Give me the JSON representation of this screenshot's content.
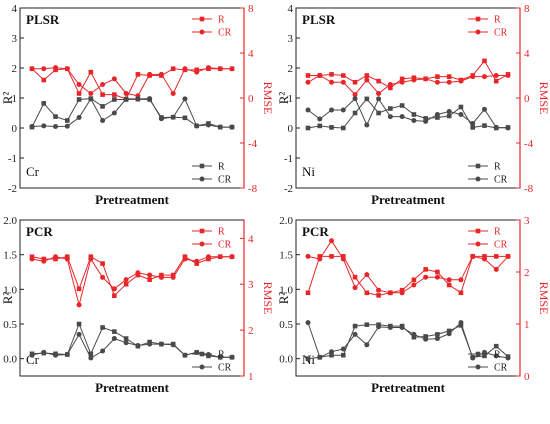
{
  "figure": {
    "colors": {
      "rmse": "#e8262a",
      "r2": "#4a4a4a"
    }
  },
  "chart_data": [
    {
      "type": "line",
      "title": "PLSR",
      "metal": "Cr",
      "xlabel": "Pretreatment",
      "ylabel_left": "R²",
      "ylabel_right": "RMSE",
      "left_ylim": [
        -2,
        4
      ],
      "left_ticks": [
        "-2",
        "-1",
        "0",
        "1",
        "2",
        "3",
        "4"
      ],
      "right_ylim": [
        -8,
        8
      ],
      "right_ticks": [
        "-8",
        "-4",
        "0",
        "4",
        "8"
      ],
      "x": [
        1,
        2,
        3,
        4,
        5,
        6,
        7,
        8,
        9,
        10,
        11,
        12,
        13,
        14,
        15,
        16,
        17,
        18
      ],
      "series": [
        {
          "name": "R",
          "axis": "right",
          "color": "#e8262a",
          "marker": "square",
          "values": [
            2.6,
            1.6,
            2.5,
            2.6,
            0.4,
            2.3,
            0.3,
            0.3,
            -0.1,
            2.1,
            2.0,
            2.0,
            2.6,
            2.5,
            2.5,
            2.6,
            2.6,
            2.6
          ]
        },
        {
          "name": "CR",
          "axis": "right",
          "color": "#e8262a",
          "marker": "circle",
          "values": [
            2.6,
            2.6,
            2.7,
            2.6,
            1.2,
            0.4,
            1.2,
            1.7,
            0.4,
            0.2,
            2.1,
            2.1,
            0.4,
            2.6,
            2.3,
            2.7,
            2.6,
            2.6
          ]
        },
        {
          "name": "R",
          "axis": "left",
          "color": "#4a4a4a",
          "marker": "square",
          "values": [
            0.03,
            0.82,
            0.38,
            0.25,
            0.95,
            0.98,
            0.72,
            0.95,
            0.95,
            0.96,
            0.95,
            0.35,
            0.36,
            0.34,
            0.07,
            0.15,
            0.03,
            0.03
          ]
        },
        {
          "name": "CR",
          "axis": "left",
          "color": "#4a4a4a",
          "marker": "circle",
          "values": [
            0.05,
            0.07,
            0.05,
            0.06,
            0.35,
            0.97,
            0.25,
            0.5,
            0.97,
            0.97,
            0.98,
            0.31,
            0.36,
            0.97,
            0.07,
            0.1,
            0.03,
            0.03
          ]
        }
      ],
      "legend": [
        {
          "label": "R",
          "color": "#e8262a",
          "marker": "square"
        },
        {
          "label": "CR",
          "color": "#e8262a",
          "marker": "circle"
        },
        {
          "label": "R",
          "color": "#4a4a4a",
          "marker": "square"
        },
        {
          "label": "CR",
          "color": "#4a4a4a",
          "marker": "circle"
        }
      ]
    },
    {
      "type": "line",
      "title": "PLSR",
      "metal": "Ni",
      "xlabel": "Pretreatment",
      "ylabel_left": "R²",
      "ylabel_right": "RMSE",
      "left_ylim": [
        -2,
        4
      ],
      "left_ticks": [
        "-2",
        "-1",
        "0",
        "1",
        "2",
        "3",
        "4"
      ],
      "right_ylim": [
        -8,
        8
      ],
      "right_ticks": [
        "-8",
        "-4",
        "0",
        "4",
        "8"
      ],
      "x": [
        1,
        2,
        3,
        4,
        5,
        6,
        7,
        8,
        9,
        10,
        11,
        12,
        13,
        14,
        15,
        16,
        17,
        18
      ],
      "series": [
        {
          "name": "R",
          "axis": "right",
          "color": "#e8262a",
          "marker": "square",
          "values": [
            2.0,
            2.0,
            2.1,
            2.0,
            1.4,
            2.0,
            1.5,
            0.9,
            1.7,
            1.8,
            1.7,
            1.9,
            1.9,
            1.6,
            2.0,
            3.3,
            1.5,
            2.1
          ]
        },
        {
          "name": "CR",
          "axis": "right",
          "color": "#e8262a",
          "marker": "circle",
          "values": [
            1.4,
            2.0,
            1.4,
            1.4,
            0.3,
            1.6,
            0.4,
            1.2,
            1.4,
            1.6,
            1.7,
            1.4,
            1.4,
            1.5,
            1.9,
            1.9,
            2.0,
            2.0
          ]
        },
        {
          "name": "R",
          "axis": "left",
          "color": "#4a4a4a",
          "marker": "square",
          "values": [
            0.0,
            0.07,
            0.02,
            0.0,
            0.5,
            0.97,
            0.5,
            0.65,
            0.75,
            0.45,
            0.32,
            0.35,
            0.4,
            0.7,
            0.02,
            0.08,
            0.0,
            0.02
          ]
        },
        {
          "name": "CR",
          "axis": "left",
          "color": "#4a4a4a",
          "marker": "circle",
          "values": [
            0.6,
            0.3,
            0.6,
            0.6,
            0.98,
            0.1,
            0.97,
            0.38,
            0.38,
            0.25,
            0.22,
            0.45,
            0.55,
            0.45,
            0.15,
            0.62,
            0.02,
            0.0
          ]
        }
      ],
      "legend": [
        {
          "label": "R",
          "color": "#e8262a",
          "marker": "square"
        },
        {
          "label": "CR",
          "color": "#e8262a",
          "marker": "circle"
        },
        {
          "label": "R",
          "color": "#4a4a4a",
          "marker": "square"
        },
        {
          "label": "CR",
          "color": "#4a4a4a",
          "marker": "circle"
        }
      ]
    },
    {
      "type": "line",
      "title": "PCR",
      "metal": "Cr",
      "xlabel": "Pretreatment",
      "ylabel_left": "R²",
      "ylabel_right": "RMSE",
      "left_ylim": [
        -0.25,
        2
      ],
      "left_ticks": [
        "0.0",
        "0.5",
        "1.0",
        "1.5",
        "2.0"
      ],
      "right_ylim": [
        1,
        4.4
      ],
      "right_ticks": [
        "1",
        "2",
        "3",
        "4"
      ],
      "x": [
        1,
        2,
        3,
        4,
        5,
        6,
        7,
        8,
        9,
        10,
        11,
        12,
        13,
        14,
        15,
        16,
        17,
        18
      ],
      "series": [
        {
          "name": "R",
          "axis": "right",
          "color": "#e8262a",
          "marker": "square",
          "values": [
            3.6,
            3.55,
            3.55,
            3.6,
            2.9,
            3.6,
            3.45,
            2.75,
            3.0,
            3.2,
            3.1,
            3.2,
            3.2,
            3.6,
            3.45,
            3.55,
            3.6,
            3.6
          ]
        },
        {
          "name": "CR",
          "axis": "right",
          "color": "#e8262a",
          "marker": "circle",
          "values": [
            3.55,
            3.5,
            3.6,
            3.55,
            2.55,
            3.55,
            3.15,
            2.9,
            3.1,
            3.25,
            3.2,
            3.15,
            3.15,
            3.55,
            3.5,
            3.6,
            3.6,
            3.6
          ]
        },
        {
          "name": "R",
          "axis": "left",
          "color": "#4a4a4a",
          "marker": "square",
          "values": [
            0.07,
            0.08,
            0.07,
            0.06,
            0.5,
            0.07,
            0.45,
            0.39,
            0.29,
            0.18,
            0.24,
            0.21,
            0.21,
            0.05,
            0.09,
            0.04,
            0.02,
            0.02
          ]
        },
        {
          "name": "CR",
          "axis": "left",
          "color": "#4a4a4a",
          "marker": "circle",
          "values": [
            0.05,
            0.09,
            0.05,
            0.06,
            0.35,
            0.01,
            0.11,
            0.29,
            0.23,
            0.19,
            0.21,
            0.21,
            0.2,
            0.05,
            0.09,
            0.06,
            0.02,
            0.02
          ]
        }
      ],
      "legend": [
        {
          "label": "R",
          "color": "#e8262a",
          "marker": "square"
        },
        {
          "label": "CR",
          "color": "#e8262a",
          "marker": "circle"
        },
        {
          "label": "R",
          "color": "#4a4a4a",
          "marker": "square"
        },
        {
          "label": "CR",
          "color": "#4a4a4a",
          "marker": "circle"
        }
      ]
    },
    {
      "type": "line",
      "title": "PCR",
      "metal": "Ni",
      "xlabel": "Pretreatment",
      "ylabel_left": "R²",
      "ylabel_right": "RMSE",
      "left_ylim": [
        -0.25,
        2
      ],
      "left_ticks": [
        "0.0",
        "0.5",
        "1.0",
        "1.5",
        "2.0"
      ],
      "right_ylim": [
        0,
        3
      ],
      "right_ticks": [
        "0",
        "1",
        "2",
        "3"
      ],
      "x": [
        1,
        2,
        3,
        4,
        5,
        6,
        7,
        8,
        9,
        10,
        11,
        12,
        13,
        14,
        15,
        16,
        17,
        18
      ],
      "series": [
        {
          "name": "R",
          "axis": "right",
          "color": "#e8262a",
          "marker": "square",
          "values": [
            1.6,
            2.3,
            2.3,
            2.3,
            1.9,
            1.6,
            1.55,
            1.6,
            1.65,
            1.85,
            2.05,
            2.0,
            1.75,
            1.6,
            2.3,
            2.3,
            2.3,
            2.3
          ]
        },
        {
          "name": "CR",
          "axis": "right",
          "color": "#e8262a",
          "marker": "circle",
          "values": [
            2.3,
            2.25,
            2.6,
            2.25,
            1.7,
            1.95,
            1.65,
            1.6,
            1.6,
            1.75,
            1.9,
            1.9,
            1.85,
            1.85,
            2.3,
            2.25,
            2.05,
            2.3
          ]
        },
        {
          "name": "R",
          "axis": "left",
          "color": "#4a4a4a",
          "marker": "square",
          "values": [
            0.0,
            0.02,
            0.05,
            0.05,
            0.47,
            0.49,
            0.49,
            0.47,
            0.47,
            0.31,
            0.32,
            0.35,
            0.4,
            0.48,
            0.02,
            0.04,
            0.18,
            0.03
          ]
        },
        {
          "name": "CR",
          "axis": "left",
          "color": "#4a4a4a",
          "marker": "circle",
          "values": [
            0.52,
            0.02,
            0.1,
            0.14,
            0.35,
            0.2,
            0.46,
            0.45,
            0.45,
            0.35,
            0.28,
            0.29,
            0.36,
            0.52,
            0.01,
            0.09,
            0.04,
            0.01
          ]
        }
      ],
      "legend": [
        {
          "label": "R",
          "color": "#e8262a",
          "marker": "square"
        },
        {
          "label": "CR",
          "color": "#e8262a",
          "marker": "circle"
        },
        {
          "label": "R",
          "color": "#4a4a4a",
          "marker": "square"
        },
        {
          "label": "CR",
          "color": "#4a4a4a",
          "marker": "circle"
        }
      ]
    }
  ]
}
